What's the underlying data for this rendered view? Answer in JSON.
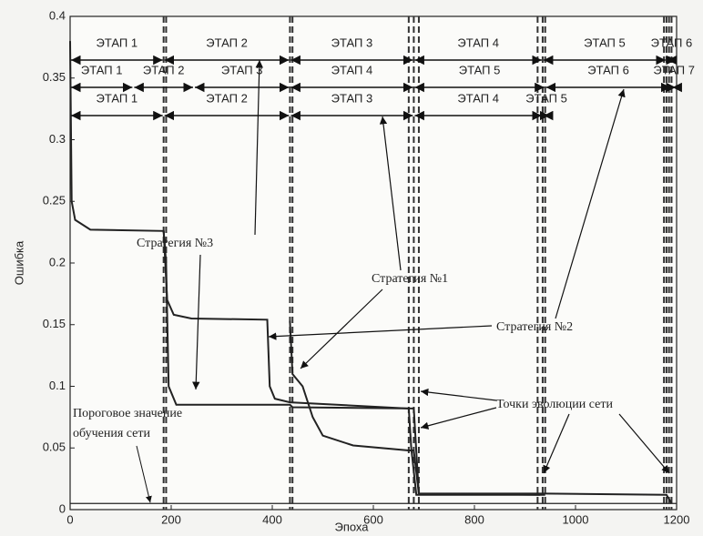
{
  "chart_data": {
    "type": "line",
    "xlabel": "Эпоха",
    "ylabel": "Ошибка",
    "xlim": [
      0,
      1200
    ],
    "ylim": [
      0,
      0.4
    ],
    "xticks": [
      0,
      200,
      400,
      600,
      800,
      1000,
      1200
    ],
    "yticks": [
      0,
      0.05,
      0.1,
      0.15,
      0.2,
      0.25,
      0.3,
      0.35,
      0.4
    ],
    "series": [
      {
        "color": "#222222",
        "x": [
          0,
          3,
          10,
          40,
          185,
          190,
          195,
          210,
          435,
          440,
          680,
          690,
          940,
          1180,
          1190
        ],
        "values": [
          0.38,
          0.25,
          0.235,
          0.227,
          0.226,
          0.2,
          0.1,
          0.085,
          0.085,
          0.083,
          0.082,
          0.013,
          0.013,
          0.012,
          0.005
        ]
      },
      {
        "color": "#222222",
        "x": [
          185,
          192,
          205,
          240,
          390,
          395,
          405,
          435,
          670,
          675,
          685,
          940
        ],
        "values": [
          0.226,
          0.17,
          0.158,
          0.155,
          0.154,
          0.1,
          0.09,
          0.087,
          0.082,
          0.05,
          0.012,
          0.012
        ]
      },
      {
        "color": "#222222",
        "x": [
          435,
          440,
          460,
          480,
          500,
          560,
          670,
          680,
          690,
          930
        ],
        "values": [
          0.153,
          0.11,
          0.1,
          0.075,
          0.06,
          0.052,
          0.048,
          0.048,
          0.013,
          0.012
        ]
      }
    ],
    "threshold": {
      "value": 0.005,
      "label": [
        "Пороговое значение",
        "обучения сети"
      ]
    },
    "vlines": [
      185,
      190,
      435,
      440,
      670,
      680,
      690,
      925,
      935,
      940,
      1175,
      1180,
      1185,
      1190
    ],
    "stages": [
      {
        "labels": [
          "ЭТАП 1",
          "ЭТАП 2",
          "ЭТАП 3",
          "ЭТАП 4",
          "ЭТАП 5",
          "ЭТАП 6"
        ],
        "bounds": [
          0,
          185,
          435,
          680,
          935,
          1180,
          1200
        ]
      },
      {
        "labels": [
          "ЭТАП 1",
          "ЭТАП 2",
          "ЭТАП 3",
          "ЭТАП 4",
          "ЭТАП 5",
          "ЭТАП 6",
          "ЭТАП 7"
        ],
        "bounds": [
          0,
          125,
          245,
          435,
          680,
          940,
          1190,
          1200
        ]
      },
      {
        "labels": [
          "ЭТАП 1",
          "ЭТАП 2",
          "ЭТАП 3",
          "ЭТАП 4",
          "ЭТАП 5"
        ],
        "bounds": [
          0,
          185,
          435,
          680,
          935,
          950
        ]
      }
    ],
    "annotations": [
      "Стратегия №3",
      "Стратегия №1",
      "Стратегия №2",
      "Точки эволюции сети"
    ]
  }
}
